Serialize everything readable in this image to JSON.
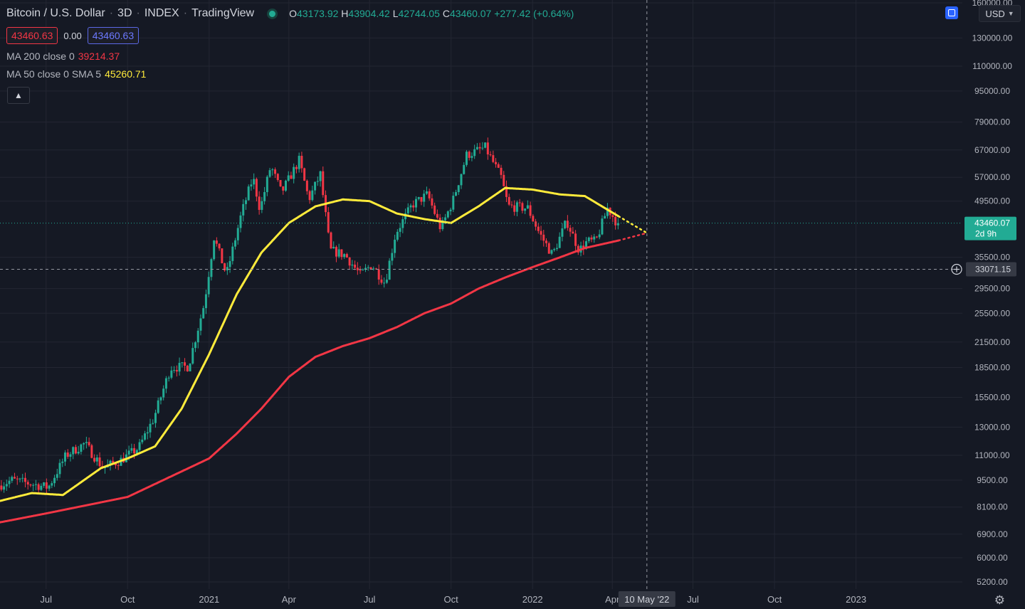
{
  "header": {
    "symbol": "Bitcoin / U.S. Dollar",
    "interval": "3D",
    "exchange": "INDEX",
    "source": "TradingView",
    "open_label": "O",
    "open": "43173.92",
    "high_label": "H",
    "high": "43904.42",
    "low_label": "L",
    "low": "42744.05",
    "close_label": "C",
    "close": "43460.07",
    "change": "+277.42 (+0.64%)",
    "sell_price": "43460.63",
    "spread": "0.00",
    "buy_price": "43460.63"
  },
  "indicators": [
    {
      "label": "MA 200 close 0",
      "value": "39214.37",
      "color": "#f23645"
    },
    {
      "label": "MA 50 close 0 SMA 5",
      "value": "45260.71",
      "color": "#ffeb3b"
    }
  ],
  "collapse_icon": "chevron-up-icon",
  "currency": "USD",
  "settings_icon": "gear-icon",
  "price_label": {
    "value": "43460.07",
    "countdown": "2d 9h",
    "color": "#22ab94"
  },
  "crosshair": {
    "price": "33071.15",
    "date": "10 May '22"
  },
  "colors": {
    "background": "#151924",
    "up": "#22ab94",
    "down": "#f23645",
    "ma50": "#ffeb3b",
    "ma200": "#f23645"
  },
  "chart_data": {
    "type": "candlestick",
    "y_scale": "log",
    "ylim": [
      5200,
      160000
    ],
    "y_ticks": [
      "160000.00",
      "130000.00",
      "110000.00",
      "95000.00",
      "79000.00",
      "67000.00",
      "57000.00",
      "49500.00",
      "35500.00",
      "29500.00",
      "25500.00",
      "21500.00",
      "18500.00",
      "15500.00",
      "13000.00",
      "11000.00",
      "9500.00",
      "8100.00",
      "6900.00",
      "6000.00",
      "5200.00"
    ],
    "x_ticks": [
      "Jul",
      "Oct",
      "2021",
      "Apr",
      "Jul",
      "Oct",
      "2022",
      "Apr",
      "Jul",
      "Oct",
      "2023"
    ],
    "x_tick_dates": [
      "2020-07-01",
      "2020-10-01",
      "2021-01-01",
      "2021-04-01",
      "2021-07-01",
      "2021-10-01",
      "2022-01-01",
      "2022-04-01",
      "2022-07-01",
      "2022-10-01",
      "2023-01-01"
    ],
    "x_range": [
      "2020-05-10",
      "2023-05-01"
    ],
    "crosshair_date": "2022-05-10",
    "crosshair_price": 33071.15,
    "last_price": 43460.07,
    "price_anchors": [
      [
        "2020-05-10",
        9200
      ],
      [
        "2020-05-25",
        9500
      ],
      [
        "2020-06-15",
        9300
      ],
      [
        "2020-07-05",
        9100
      ],
      [
        "2020-07-25",
        11000
      ],
      [
        "2020-08-15",
        11800
      ],
      [
        "2020-09-05",
        10200
      ],
      [
        "2020-09-25",
        10700
      ],
      [
        "2020-10-15",
        11500
      ],
      [
        "2020-11-01",
        13700
      ],
      [
        "2020-11-20",
        18500
      ],
      [
        "2020-12-10",
        18600
      ],
      [
        "2020-12-28",
        27000
      ],
      [
        "2021-01-08",
        40000
      ],
      [
        "2021-01-22",
        32000
      ],
      [
        "2021-02-08",
        46000
      ],
      [
        "2021-02-21",
        57000
      ],
      [
        "2021-03-01",
        47000
      ],
      [
        "2021-03-13",
        61000
      ],
      [
        "2021-03-25",
        52000
      ],
      [
        "2021-04-14",
        63000
      ],
      [
        "2021-04-25",
        50000
      ],
      [
        "2021-05-08",
        58000
      ],
      [
        "2021-05-19",
        37000
      ],
      [
        "2021-06-05",
        36000
      ],
      [
        "2021-06-22",
        32000
      ],
      [
        "2021-07-05",
        34000
      ],
      [
        "2021-07-20",
        30500
      ],
      [
        "2021-08-01",
        41000
      ],
      [
        "2021-08-20",
        48500
      ],
      [
        "2021-09-06",
        51500
      ],
      [
        "2021-09-21",
        42000
      ],
      [
        "2021-10-05",
        50000
      ],
      [
        "2021-10-20",
        65000
      ],
      [
        "2021-11-10",
        68000
      ],
      [
        "2021-11-28",
        57000
      ],
      [
        "2021-12-06",
        48000
      ],
      [
        "2021-12-28",
        47500
      ],
      [
        "2022-01-10",
        41000
      ],
      [
        "2022-01-25",
        36000
      ],
      [
        "2022-02-10",
        44000
      ],
      [
        "2022-02-24",
        37000
      ],
      [
        "2022-03-05",
        39000
      ],
      [
        "2022-03-15",
        39000
      ],
      [
        "2022-03-28",
        47500
      ],
      [
        "2022-04-08",
        43460
      ]
    ],
    "ma50_anchors": [
      [
        "2020-05-10",
        8400
      ],
      [
        "2020-06-15",
        8800
      ],
      [
        "2020-07-20",
        8700
      ],
      [
        "2020-09-01",
        10200
      ],
      [
        "2020-10-01",
        10800
      ],
      [
        "2020-11-01",
        11600
      ],
      [
        "2020-12-01",
        14500
      ],
      [
        "2021-01-01",
        20000
      ],
      [
        "2021-02-01",
        28500
      ],
      [
        "2021-03-01",
        36500
      ],
      [
        "2021-04-01",
        43500
      ],
      [
        "2021-05-01",
        48000
      ],
      [
        "2021-06-01",
        50000
      ],
      [
        "2021-07-01",
        49500
      ],
      [
        "2021-08-01",
        46000
      ],
      [
        "2021-09-01",
        44500
      ],
      [
        "2021-10-01",
        43500
      ],
      [
        "2021-11-01",
        48000
      ],
      [
        "2021-12-01",
        53500
      ],
      [
        "2022-01-01",
        53000
      ],
      [
        "2022-02-01",
        51500
      ],
      [
        "2022-03-01",
        51000
      ],
      [
        "2022-04-08",
        45260
      ]
    ],
    "ma200_anchors": [
      [
        "2020-05-10",
        7400
      ],
      [
        "2020-07-01",
        7800
      ],
      [
        "2020-10-01",
        8600
      ],
      [
        "2021-01-01",
        10800
      ],
      [
        "2021-02-01",
        12500
      ],
      [
        "2021-03-01",
        14500
      ],
      [
        "2021-04-01",
        17500
      ],
      [
        "2021-05-01",
        19700
      ],
      [
        "2021-06-01",
        21000
      ],
      [
        "2021-07-01",
        22000
      ],
      [
        "2021-08-01",
        23500
      ],
      [
        "2021-09-01",
        25500
      ],
      [
        "2021-10-01",
        27000
      ],
      [
        "2021-11-01",
        29500
      ],
      [
        "2021-12-01",
        31500
      ],
      [
        "2022-01-01",
        33500
      ],
      [
        "2022-02-01",
        35500
      ],
      [
        "2022-03-01",
        37500
      ],
      [
        "2022-04-08",
        39214
      ]
    ],
    "ma50_projection": [
      [
        "2022-04-08",
        45260
      ],
      [
        "2022-05-10",
        41000
      ]
    ],
    "ma200_projection": [
      [
        "2022-04-08",
        39214
      ],
      [
        "2022-05-10",
        41000
      ]
    ]
  }
}
